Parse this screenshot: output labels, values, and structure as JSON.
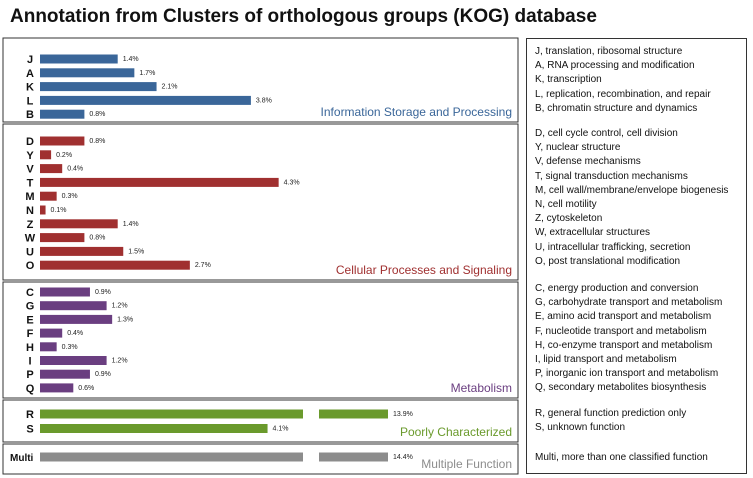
{
  "title": "Annotation from Clusters of orthologous groups (KOG) database",
  "colors": {
    "information": "#3a6699",
    "cellular": "#a03030",
    "metabolism": "#6a3e80",
    "poorly": "#6a9a2c",
    "multi": "#8c8c8c",
    "panel_border": "#333333"
  },
  "chart_data": {
    "type": "bar",
    "orientation": "horizontal",
    "value_format": "percent",
    "axis_break": true,
    "groups": [
      {
        "name": "Information Storage and Processing",
        "color_key": "information",
        "categories": [
          "J",
          "A",
          "K",
          "L",
          "B"
        ],
        "values": [
          1.4,
          1.7,
          2.1,
          3.8,
          0.8
        ],
        "labels": [
          "1.4%",
          "1.7%",
          "2.1%",
          "3.8%",
          "0.8%"
        ]
      },
      {
        "name": "Cellular Processes and Signaling",
        "color_key": "cellular",
        "categories": [
          "D",
          "Y",
          "V",
          "T",
          "M",
          "N",
          "Z",
          "W",
          "U",
          "O"
        ],
        "values": [
          0.8,
          0.2,
          0.4,
          4.3,
          0.3,
          0.1,
          1.4,
          0.8,
          1.5,
          2.7
        ],
        "labels": [
          "0.8%",
          "0.2%",
          "0.4%",
          "4.3%",
          "0.3%",
          "0.1%",
          "1.4%",
          "0.8%",
          "1.5%",
          "2.7%"
        ]
      },
      {
        "name": "Metabolism",
        "color_key": "metabolism",
        "categories": [
          "C",
          "G",
          "E",
          "F",
          "H",
          "I",
          "P",
          "Q"
        ],
        "values": [
          0.9,
          1.2,
          1.3,
          0.4,
          0.3,
          1.2,
          0.9,
          0.6
        ],
        "labels": [
          "0.9%",
          "1.2%",
          "1.3%",
          "0.4%",
          "0.3%",
          "1.2%",
          "0.9%",
          "0.6%"
        ]
      },
      {
        "name": "Poorly Characterized",
        "color_key": "poorly",
        "categories": [
          "R",
          "S"
        ],
        "values": [
          13.9,
          4.1
        ],
        "labels": [
          "13.9%",
          "4.1%"
        ],
        "broken": [
          true,
          false
        ]
      },
      {
        "name": "Multiple Function",
        "color_key": "multi",
        "categories": [
          "Multi"
        ],
        "values": [
          14.4
        ],
        "labels": [
          "14.4%"
        ],
        "broken": [
          true
        ]
      }
    ]
  },
  "legend": [
    [
      "J, translation, ribosomal structure",
      "A, RNA processing and modification",
      "K, transcription",
      "L, replication, recombination, and repair",
      "B, chromatin structure and dynamics"
    ],
    [
      "D, cell cycle control, cell division",
      "Y, nuclear structure",
      "V, defense mechanisms",
      "T, signal transduction mechanisms",
      "M, cell wall/membrane/envelope biogenesis",
      "N, cell motility",
      "Z, cytoskeleton",
      "W, extracellular structures",
      "U, intracellular trafficking, secretion",
      "O, post translational modification"
    ],
    [
      "C, energy production and conversion",
      "G, carbohydrate transport and metabolism",
      "E, amino acid transport and metabolism",
      "F, nucleotide transport and metabolism",
      "H, co-enzyme transport and metabolism",
      "I, lipid transport and metabolism",
      "P, inorganic ion transport and metabolism",
      "Q, secondary metabolites biosynthesis"
    ],
    [
      "R, general function prediction only",
      "S, unknown function"
    ],
    [
      "Multi, more than one classified function"
    ]
  ]
}
